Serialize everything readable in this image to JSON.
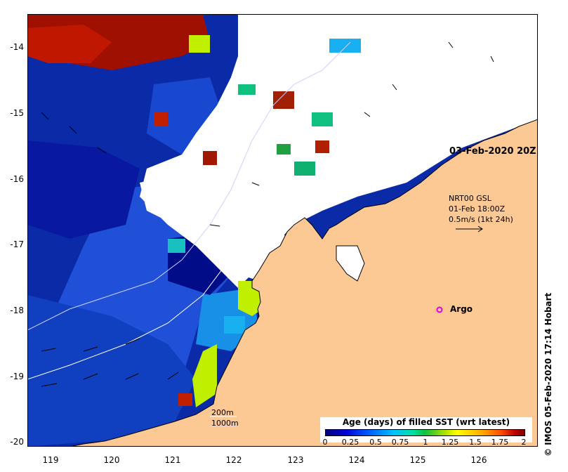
{
  "map": {
    "y_axis_labels": [
      "-14",
      "-15",
      "-16",
      "-17",
      "-18",
      "-19",
      "-20"
    ],
    "x_axis_labels": [
      "119",
      "120",
      "121",
      "122",
      "123",
      "124",
      "125",
      "126"
    ],
    "date_label": "03-Feb-2020 20Z",
    "current_info": {
      "line1": "NRT00 GSL",
      "line2": "01-Feb 18:00Z",
      "line3": "0.5m/s (1kt 24h)"
    },
    "argo_label": "Argo",
    "depth_contours": {
      "label_200": "200m",
      "label_1000": "1000m"
    },
    "credit": "© IMOS 05-Feb-2020 17:14 Hobart",
    "colors": {
      "land": "#fcc894",
      "argo_marker": "#e000e0"
    }
  },
  "legend": {
    "title": "Age (days) of filled SST (wrt latest)",
    "tick_labels": [
      "0",
      "0.25",
      "0.5",
      "0.75",
      "1",
      "1.25",
      "1.5",
      "1.75",
      "2"
    ]
  }
}
